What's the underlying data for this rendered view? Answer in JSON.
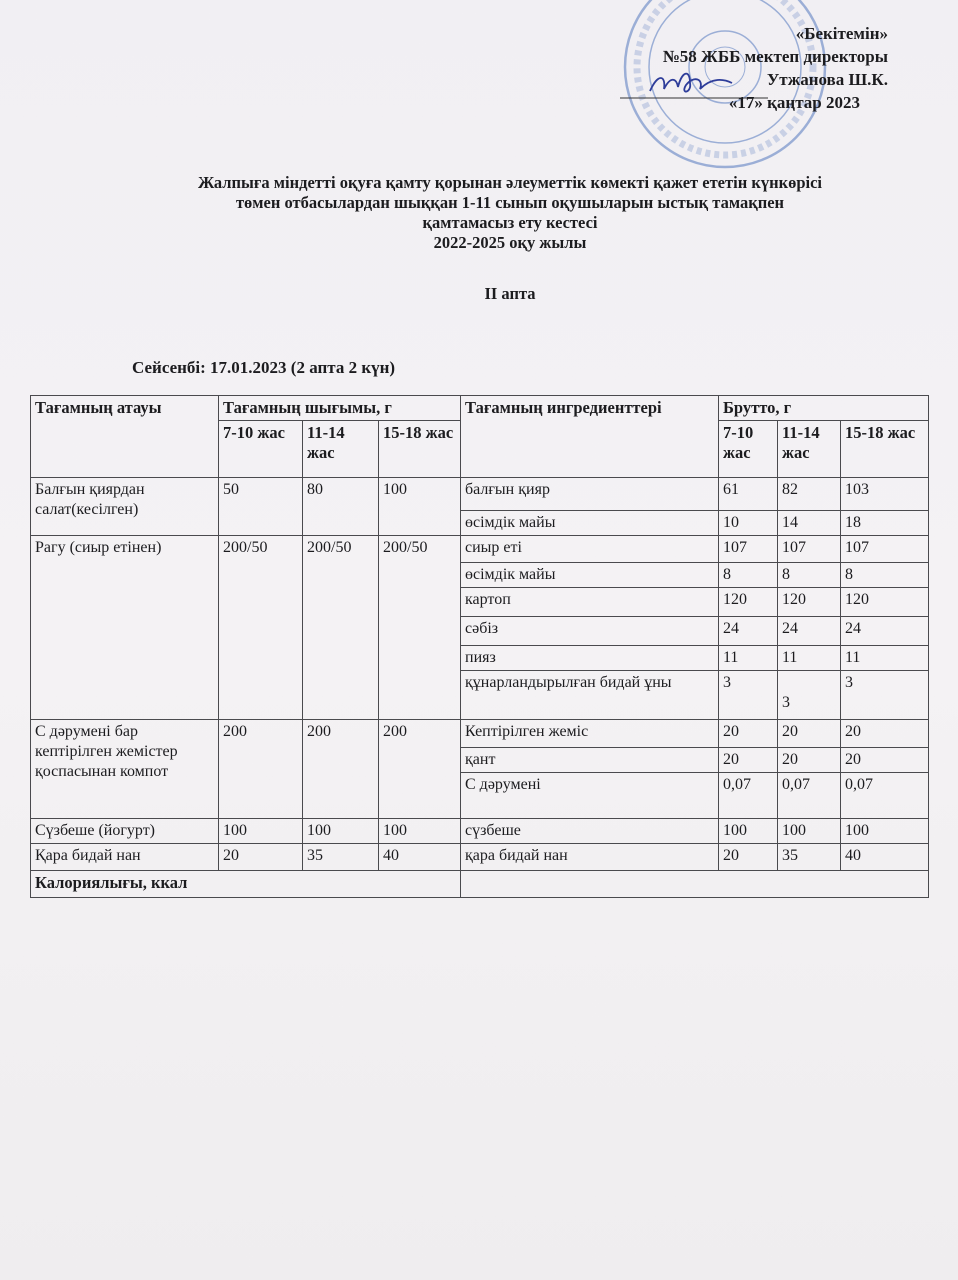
{
  "approval": {
    "line1": "«Бекітемін»",
    "line2": "№58 ЖББ мектеп директоры",
    "line3": "Утжанова Ш.К.",
    "line4": "«17» қаңтар  2023"
  },
  "stamp": {
    "text": "АЛМАТЫ ҚАЛАСЫ БІЛІМ БАСҚАРМАСЫ КОММУНАЛДЫҚ МЕМЛЕКЕТТІК МЕКЕМЕСІ",
    "color": "#6f8fc8"
  },
  "title": {
    "line1": "Жалпыға міндетті оқуға қамту қорынан әлеуметтік көмекті қажет ететін күнкөрісі",
    "line2": "төмен отбасылардан шыққан 1-11 сынып оқушыларын ыстық тамақпен",
    "line3": "қамтамасыз ету кестесі",
    "line4": "2022-2025      оқу жылы"
  },
  "week": "II апта",
  "day": "Сейсенбі: 17.01.2023 (2 апта 2 күн)",
  "table": {
    "headers": {
      "dish_name": "Тағамның атауы",
      "yield": "Тағамның шығымы, г",
      "ingredients": "Тағамның ингредиенттері",
      "brutto": "Брутто, г",
      "ages": [
        "7-10 жас",
        "11-14 жас",
        "15-18 жас"
      ]
    },
    "dishes": [
      {
        "name": "Балғын қиярдан салат(кесілген)",
        "yield": [
          "50",
          "80",
          "100"
        ],
        "ingredients": [
          {
            "name": "балғын қияр",
            "brutto": [
              "61",
              "82",
              "103"
            ]
          },
          {
            "name": "өсімдік майы",
            "brutto": [
              "10",
              "14",
              "18"
            ]
          }
        ]
      },
      {
        "name": "Рагу (сиыр етінен)",
        "yield": [
          "200/50",
          "200/50",
          "200/50"
        ],
        "ingredients": [
          {
            "name": "сиыр еті",
            "brutto": [
              "107",
              "107",
              "107"
            ]
          },
          {
            "name": "өсімдік майы",
            "brutto": [
              "8",
              "8",
              "8"
            ]
          },
          {
            "name": "картоп",
            "brutto": [
              "120",
              "120",
              "120"
            ]
          },
          {
            "name": "сәбіз",
            "brutto": [
              "24",
              "24",
              "24"
            ]
          },
          {
            "name": "пияз",
            "brutto": [
              "11",
              "11",
              "11"
            ]
          },
          {
            "name": "құнарландырылған бидай ұны",
            "brutto": [
              "3",
              "3",
              "3"
            ]
          }
        ]
      },
      {
        "name": "С дәрумені бар кептірілген жемістер қоспасынан компот",
        "yield": [
          "200",
          "200",
          "200"
        ],
        "ingredients": [
          {
            "name": "Кептірілген  жеміс",
            "brutto": [
              "20",
              "20",
              "20"
            ]
          },
          {
            "name": "қант",
            "brutto": [
              "20",
              "20",
              "20"
            ]
          },
          {
            "name": "С дәрумені",
            "brutto": [
              "0,07",
              "0,07",
              "0,07"
            ]
          }
        ]
      },
      {
        "name": "Сүзбеше (йогурт)",
        "yield": [
          "100",
          "100",
          "100"
        ],
        "ingredients": [
          {
            "name": "сүзбеше",
            "brutto": [
              "100",
              "100",
              "100"
            ]
          }
        ]
      },
      {
        "name": "Қара бидай нан",
        "yield": [
          "20",
          "35",
          "40"
        ],
        "ingredients": [
          {
            "name": "қара бидай нан",
            "brutto": [
              "20",
              "35",
              "40"
            ]
          }
        ]
      }
    ],
    "calories_label": "Калориялығы, ккал"
  }
}
